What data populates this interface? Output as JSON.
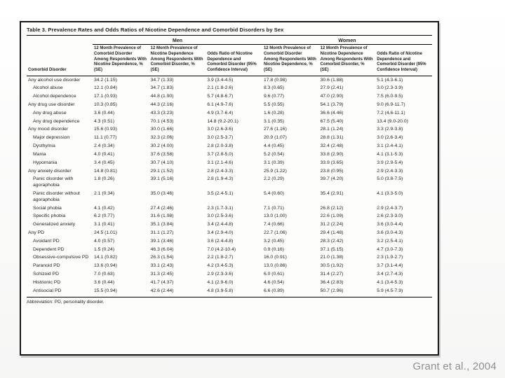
{
  "slide": {
    "citation": "Grant et al., 2004"
  },
  "table": {
    "title": "Table 3. Prevalence Rates and Odds Ratios of Nicotine Dependence and Comorbid Disorders by Sex",
    "group_headers": [
      "Men",
      "Women"
    ],
    "col_headers": {
      "disorder": "Comorbid Disorder",
      "men": [
        "12 Month Prevalence of Comorbid Disorder Among Respondents With Nicotine Dependence, % (SE)",
        "12 Month Prevalence of Nicotine Dependence Among Respondents With Comorbid Disorder, % (SE)",
        "Odds Ratio of Nicotine Dependence and Comorbid Disorder (95% Confidence Interval)"
      ],
      "women": [
        "12 Month Prevalence of Comorbid Disorder Among Respondents With Nicotine Dependence, % (SE)",
        "12 Month Prevalence of Nicotine Dependence Among Respondents With Comorbid Disorder, % (SE)",
        "Odds Ratio of Nicotine Dependence and Comorbid Disorder (95% Confidence Interval)"
      ]
    },
    "rows": [
      {
        "label": "Any alcohol use disorder",
        "indent": 0,
        "values": [
          "34.2 (1.15)",
          "34.7 (1.33)",
          "3.9 (3.4-4.5)",
          "17.8 (0.98)",
          "30.6 (1.88)",
          "5.1 (4.3-6.1)"
        ]
      },
      {
        "label": "Alcohol abuse",
        "indent": 1,
        "values": [
          "12.1 (0.84)",
          "34.7 (1.83)",
          "2.1 (1.8-2.6)",
          "8.3 (0.65)",
          "27.9 (2.41)",
          "3.0 (2.3-3.9)"
        ]
      },
      {
        "label": "Alcohol dependence",
        "indent": 1,
        "values": [
          "17.1 (0.93)",
          "44.8 (1.90)",
          "5.7 (4.8-6.7)",
          "9.6 (0.77)",
          "47.0 (2.90)",
          "7.5 (6.0-9.5)"
        ]
      },
      {
        "label": "Any drug use disorder",
        "indent": 0,
        "values": [
          "10.3 (0.85)",
          "44.3 (2.16)",
          "6.1 (4.9-7.6)",
          "5.5 (0.55)",
          "54.1 (3.79)",
          "9.0 (6.9-11.7)"
        ]
      },
      {
        "label": "Any drug abuse",
        "indent": 1,
        "values": [
          "3.6 (0.44)",
          "43.3 (3.23)",
          "4.9 (3.7-6.4)",
          "1.6 (0.28)",
          "36.6 (4.46)",
          "7.2 (4.6-11.1)"
        ]
      },
      {
        "label": "Any drug dependence",
        "indent": 1,
        "values": [
          "4.3 (0.51)",
          "70.1 (4.53)",
          "14.8 (9.2-20.1)",
          "3.1 (0.35)",
          "67.5 (5.40)",
          "13.4 (9.0-20.0)"
        ]
      },
      {
        "label": "Any mood disorder",
        "indent": 0,
        "values": [
          "15.6 (0.93)",
          "30.0 (1.66)",
          "3.0 (2.6-3.6)",
          "27.6 (1.16)",
          "28.1 (1.24)",
          "3.3 (2.9-3.8)"
        ]
      },
      {
        "label": "Major depression",
        "indent": 1,
        "values": [
          "11.1 (0.77)",
          "32.3 (2.06)",
          "3.0 (2.5-3.7)",
          "20.9 (1.07)",
          "28.8 (1.31)",
          "3.0 (2.6-3.4)"
        ]
      },
      {
        "label": "Dysthymia",
        "indent": 1,
        "values": [
          "2.4 (0.34)",
          "30.2 (4.00)",
          "2.8 (2.0-3.8)",
          "4.4 (0.45)",
          "32.4 (2.48)",
          "3.1 (2.4-4.1)"
        ]
      },
      {
        "label": "Mania",
        "indent": 1,
        "values": [
          "4.0 (0.41)",
          "37.6 (3.58)",
          "3.7 (2.8-5.0)",
          "5.2 (0.54)",
          "33.8 (2.90)",
          "4.1 (3.1-5.3)"
        ]
      },
      {
        "label": "Hypomania",
        "indent": 1,
        "values": [
          "3.4 (0.45)",
          "30.7 (4.10)",
          "3.1 (2.1-4.6)",
          "3.1 (0.39)",
          "33.9 (3.65)",
          "3.9 (2.9-5.4)"
        ]
      },
      {
        "label": "Any anxiety disorder",
        "indent": 0,
        "values": [
          "14.8 (0.81)",
          "29.1 (1.52)",
          "2.8 (2.4-3.3)",
          "25.9 (1.22)",
          "23.8 (0.95)",
          "2.9 (2.4-3.3)"
        ]
      },
      {
        "label": "Panic disorder with agoraphobia",
        "indent": 1,
        "values": [
          "1.8 (0.26)",
          "39.1 (5.16)",
          "2.8 (1.9-4.3)",
          "2.2 (0.29)",
          "39.7 (4.20)",
          "5.0 (3.8-7.5)"
        ]
      },
      {
        "label": "Panic disorder without agoraphobia",
        "indent": 1,
        "values": [
          "2.1 (0.34)",
          "35.0 (3.46)",
          "3.5 (2.4-5.1)",
          "5.4 (0.60)",
          "35.4 (2.91)",
          "4.1 (3.3-5.0)"
        ]
      },
      {
        "label": "Social phobia",
        "indent": 1,
        "values": [
          "4.1 (0.42)",
          "27.4 (2.46)",
          "2.3 (1.7-3.1)",
          "7.1 (0.71)",
          "26.8 (2.12)",
          "2.9 (2.4-3.7)"
        ]
      },
      {
        "label": "Specific phobia",
        "indent": 1,
        "values": [
          "6.2 (0.77)",
          "31.6 (1.98)",
          "3.0 (2.5-3.6)",
          "13.0 (1.00)",
          "22.6 (1.09)",
          "2.6 (2.3-3.0)"
        ]
      },
      {
        "label": "Generalized anxiety",
        "indent": 1,
        "values": [
          "3.1 (0.41)",
          "35.1 (3.84)",
          "3.4 (2.4-4.8)",
          "7.4 (0.66)",
          "31.2 (2.24)",
          "3.6 (3.0-4.4)"
        ]
      },
      {
        "label": "Any PD",
        "indent": 0,
        "values": [
          "24.5 (1.01)",
          "31.1 (1.27)",
          "3.4 (2.9-4.0)",
          "22.7 (1.06)",
          "29.4 (1.48)",
          "3.6 (3.0-4.3)"
        ]
      },
      {
        "label": "Avoidant PD",
        "indent": 1,
        "values": [
          "4.0 (0.57)",
          "39.1 (3.46)",
          "3.6 (2.4-4.8)",
          "3.2 (0.45)",
          "28.3 (2.42)",
          "3.2 (2.5-4.1)"
        ]
      },
      {
        "label": "Dependent PD",
        "indent": 1,
        "values": [
          "1.5 (0.24)",
          "46.3 (6.04)",
          "7.0 (4.2-10.4)",
          "0.9 (0.16)",
          "37.1 (5.15)",
          "4.7 (3.0-7.3)"
        ]
      },
      {
        "label": "Obsessive-compulsive PD",
        "indent": 1,
        "values": [
          "14.1 (0.82)",
          "26.3 (1.54)",
          "2.2 (1.8-2.7)",
          "16.0 (0.91)",
          "21.0 (1.38)",
          "2.3 (1.9-2.7)"
        ]
      },
      {
        "label": "Paranoid PD",
        "indent": 1,
        "values": [
          "13.6 (0.94)",
          "33.1 (2.43)",
          "4.2 (3.4-5.3)",
          "13.0 (0.86)",
          "30.5 (1.92)",
          "3.7 (3.1-4.4)"
        ]
      },
      {
        "label": "Schizoid PD",
        "indent": 1,
        "values": [
          "7.0 (0.63)",
          "31.3 (2.45)",
          "2.9 (2.3-3.6)",
          "6.0 (0.61)",
          "31.4 (2.27)",
          "3.4 (2.7-4.3)"
        ]
      },
      {
        "label": "Histrionic PD",
        "indent": 1,
        "values": [
          "3.6 (0.44)",
          "41.7 (4.37)",
          "4.1 (2.9-6.0)",
          "4.6 (0.54)",
          "36.4 (2.83)",
          "4.1 (3.4-5.3)"
        ]
      },
      {
        "label": "Antisocial PD",
        "indent": 1,
        "values": [
          "15.5 (0.94)",
          "42.6 (2.44)",
          "4.8 (3.9-5.8)",
          "6.6 (0.89)",
          "50.7 (2.96)",
          "5.9 (4.5-7.9)"
        ]
      }
    ],
    "footnote": "Abbreviation: PD, personality disorder."
  }
}
